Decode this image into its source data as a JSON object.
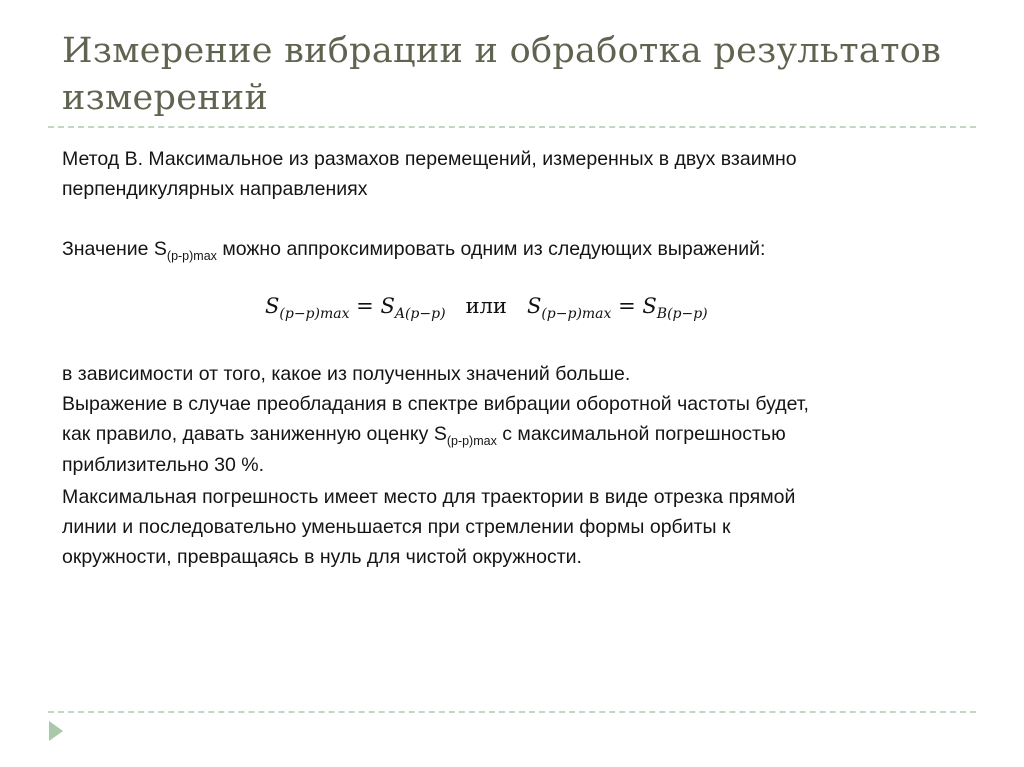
{
  "title": "Измерение вибрации и обработка результатов измерений",
  "method_line1": "Метод B. Максимальное из размахов перемещений, измеренных в двух взаимно",
  "method_line2": "перпендикулярных направлениях",
  "approx_prefix": "Значение S",
  "approx_sub": "(p-p)max",
  "approx_suffix": " можно аппроксимировать одним из следующих выражений:",
  "formula": {
    "left_main": "S",
    "left_sub": "(p−p)max",
    "eq": " = ",
    "a_main": "S",
    "a_sub": "A(p−p)",
    "or": "   или   ",
    "right_main": "S",
    "right_sub": "(p−p)max",
    "b_main": "S",
    "b_sub": "B(p−p)"
  },
  "para_lines": [
    "в зависимости от того, какое из полученных значений больше.",
    "Выражение в случае преобладания в спектре вибрации оборотной частоты будет,"
  ],
  "estimate_prefix": "как правило, давать заниженную оценку S",
  "estimate_sub": "(p-p)max",
  "estimate_suffix": " с максимальной погрешностью",
  "para_lines2": [
    "приблизительно 30 %.",
    "Максимальная погрешность имеет место для траектории в виде отрезка прямой",
    "линии и последовательно уменьшается при стремлении формы орбиты к",
    "окружности, превращаясь в нуль для чистой окружности."
  ],
  "colors": {
    "title": "#5f6450",
    "accent": "#a9c9a9"
  }
}
